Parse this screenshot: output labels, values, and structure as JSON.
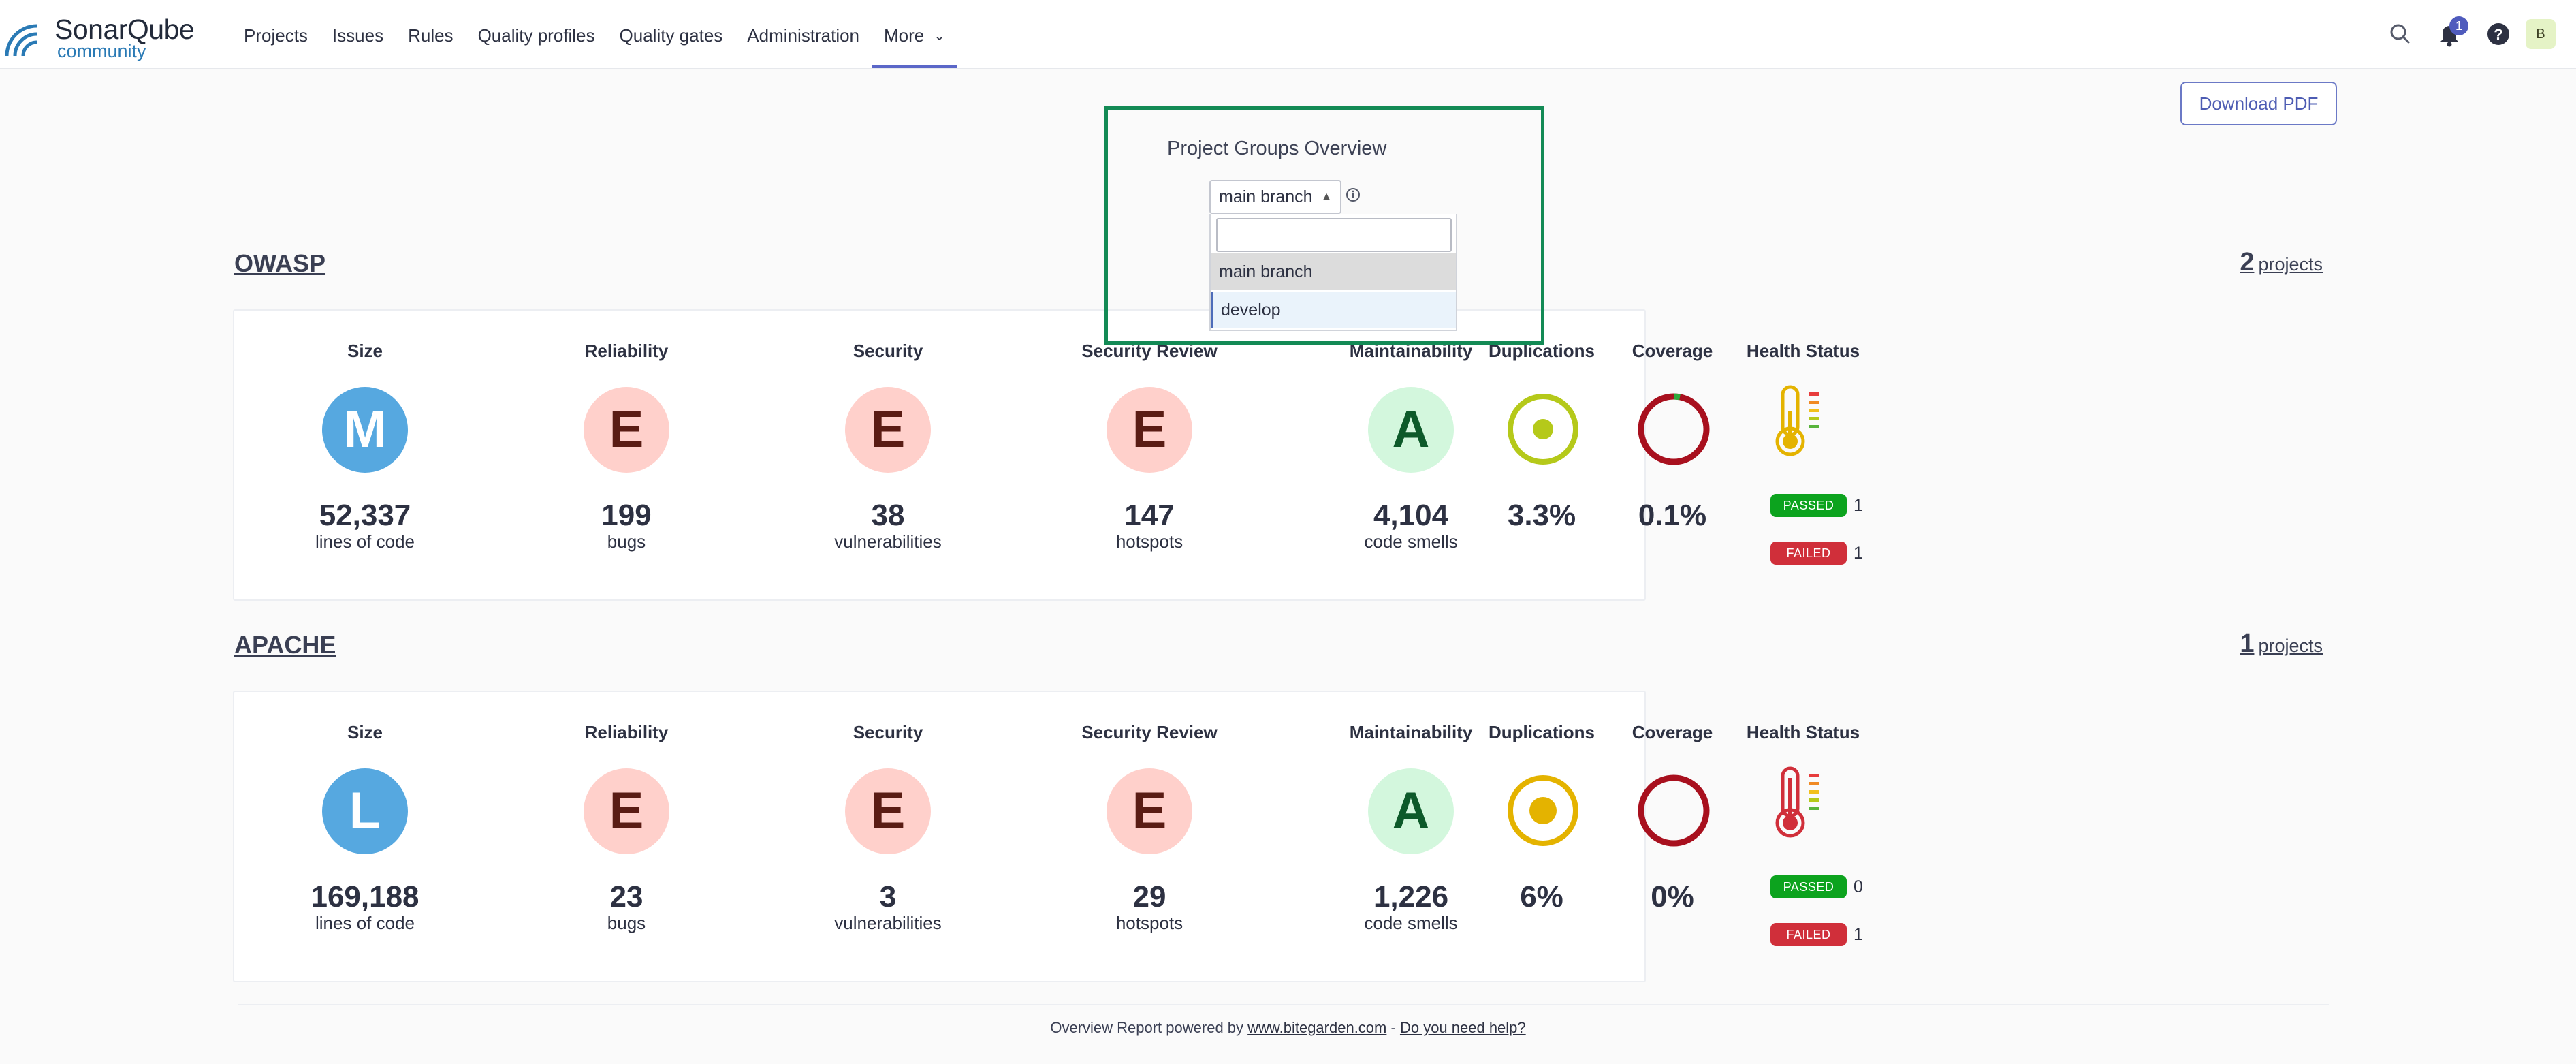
{
  "app": {
    "logo_name": "SonarQube",
    "logo_edition": "community",
    "brand_color": "#2a7ab5"
  },
  "nav": {
    "items": [
      "Projects",
      "Issues",
      "Rules",
      "Quality profiles",
      "Quality gates",
      "Administration",
      "More"
    ],
    "active": "More",
    "notifications_count": "1",
    "avatar_initial": "B"
  },
  "toolbar": {
    "download_label": "Download PDF"
  },
  "branch_selector": {
    "title": "Project Groups Overview",
    "selected": "main branch",
    "search_value": "",
    "options": [
      "main branch",
      "develop"
    ]
  },
  "groups": [
    {
      "name": "OWASP",
      "project_count": "2",
      "projects_label": "projects",
      "metrics": {
        "size": {
          "label": "Size",
          "rating": "M",
          "value": "52,337",
          "sub": "lines of code"
        },
        "reliability": {
          "label": "Reliability",
          "rating": "E",
          "value": "199",
          "sub": "bugs"
        },
        "security": {
          "label": "Security",
          "rating": "E",
          "value": "38",
          "sub": "vulnerabilities"
        },
        "security_review": {
          "label": "Security Review",
          "rating": "E",
          "value": "147",
          "sub": "hotspots"
        },
        "maintainability": {
          "label": "Maintainability",
          "rating": "A",
          "value": "4,104",
          "sub": "code smells"
        },
        "duplications": {
          "label": "Duplications",
          "value": "3.3%",
          "color": "#b5c91a"
        },
        "coverage": {
          "label": "Coverage",
          "value": "0.1%",
          "fraction": 0.001
        },
        "health": {
          "label": "Health Status",
          "passed_label": "PASSED",
          "passed": "1",
          "failed_label": "FAILED",
          "failed": "1",
          "level": "warning",
          "color": "#e4b300"
        }
      }
    },
    {
      "name": "APACHE",
      "project_count": "1",
      "projects_label": "projects",
      "metrics": {
        "size": {
          "label": "Size",
          "rating": "L",
          "value": "169,188",
          "sub": "lines of code"
        },
        "reliability": {
          "label": "Reliability",
          "rating": "E",
          "value": "23",
          "sub": "bugs"
        },
        "security": {
          "label": "Security",
          "rating": "E",
          "value": "3",
          "sub": "vulnerabilities"
        },
        "security_review": {
          "label": "Security Review",
          "rating": "E",
          "value": "29",
          "sub": "hotspots"
        },
        "maintainability": {
          "label": "Maintainability",
          "rating": "A",
          "value": "1,226",
          "sub": "code smells"
        },
        "duplications": {
          "label": "Duplications",
          "value": "6%",
          "color": "#e4b300"
        },
        "coverage": {
          "label": "Coverage",
          "value": "0%",
          "fraction": 0
        },
        "health": {
          "label": "Health Status",
          "passed_label": "PASSED",
          "passed": "0",
          "failed_label": "FAILED",
          "failed": "1",
          "level": "critical",
          "color": "#d02f3a"
        }
      }
    }
  ],
  "footer": {
    "text": "Overview Report powered by",
    "link1": "www.bitegarden.com",
    "separator": "-",
    "link2": "Do you need help?"
  },
  "colors": {
    "accent": "#5b67c8",
    "highlight_border": "#138a55",
    "rating_e_bg": "#ffd0cb",
    "rating_a_bg": "#d3f7dd",
    "size_bg": "#56a8e0",
    "coverage_ring": "#a8101e",
    "coverage_covered": "#2eaa3c"
  }
}
